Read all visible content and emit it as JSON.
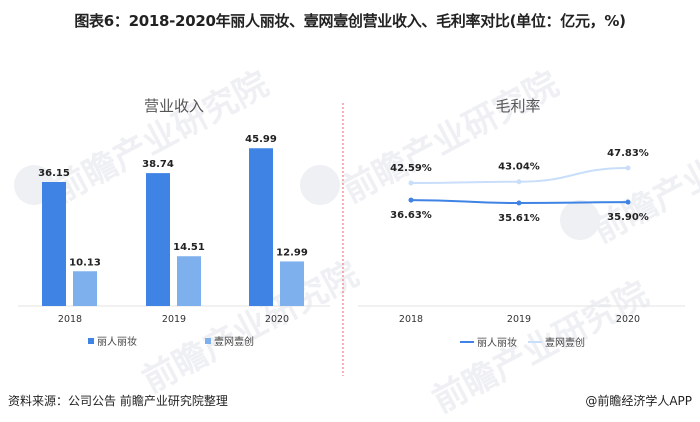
{
  "title": "图表6：2018-2020年丽人丽妆、壹网壹创营业收入、毛利率对比(单位：亿元，%)",
  "footer": {
    "source": "资料来源：公司公告 前瞻产业研究院整理",
    "credit": "@前瞻经济学人APP"
  },
  "watermark": "前瞻产业研究院",
  "colors": {
    "series1": "#3f83e4",
    "series2": "#7fb0ee",
    "line2": "#c9defa",
    "divider": "#f08080"
  },
  "chart_data": [
    {
      "type": "bar",
      "title": "营业收入",
      "categories": [
        "2018",
        "2019",
        "2020"
      ],
      "series": [
        {
          "name": "丽人丽妆",
          "values": [
            36.15,
            38.74,
            45.99
          ],
          "labels": [
            "36.15",
            "38.74",
            "45.99"
          ]
        },
        {
          "name": "壹网壹创",
          "values": [
            10.13,
            14.51,
            12.99
          ],
          "labels": [
            "10.13",
            "14.51",
            "12.99"
          ]
        }
      ],
      "xlabel": "",
      "ylabel": "",
      "legend_position": "bottom",
      "grid": false
    },
    {
      "type": "line",
      "title": "毛利率",
      "categories": [
        "2018",
        "2019",
        "2020"
      ],
      "series": [
        {
          "name": "丽人丽妆",
          "values": [
            36.63,
            35.61,
            35.9
          ],
          "labels": [
            "36.63%",
            "35.61%",
            "35.90%"
          ]
        },
        {
          "name": "壹网壹创",
          "values": [
            42.59,
            43.04,
            47.83
          ],
          "labels": [
            "42.59%",
            "43.04%",
            "47.83%"
          ]
        }
      ],
      "xlabel": "",
      "ylabel": "",
      "legend_position": "bottom",
      "grid": false
    }
  ]
}
